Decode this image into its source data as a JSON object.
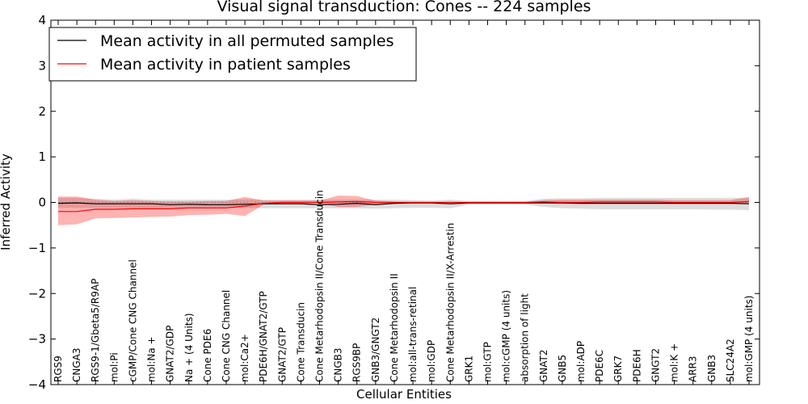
{
  "chart_data": {
    "type": "line",
    "title": "Visual signal transduction: Cones -- 224 samples",
    "xlabel": "Cellular Entities",
    "ylabel": "Inferred Activity",
    "ylim": [
      -4,
      4
    ],
    "yticks": [
      4,
      3,
      2,
      1,
      0,
      -1,
      -2,
      -3,
      -4
    ],
    "ytick_labels": [
      "4",
      "3",
      "2",
      "1",
      "0",
      "−1",
      "−2",
      "−3",
      "−4"
    ],
    "legend_position": "top-left",
    "categories": [
      "RGS9",
      "CNGA3",
      "RGS9-1/Gbeta5/R9AP",
      "mol:Pi",
      "cGMP/Cone CNG Channel",
      "mol:Na +",
      "GNAT2/GDP",
      "Na + (4 Units)",
      "Cone PDE6",
      "Cone CNG Channel",
      "mol:Ca2+",
      "PDE6H/GNAT2/GTP",
      "GNAT2/GTP",
      "Cone Transducin",
      "Cone Metarhodopsin II/Cone Transducin",
      "CNGB3",
      "RGS9BP",
      "GNB3/GNGT2",
      "Cone Metarhodopsin II",
      "mol:all-trans-retinal",
      "mol:GDP",
      "Cone Metarhodopsin II/X-Arrestin",
      "GRK1",
      "mol:GTP",
      "mol:cGMP (4 units)",
      "absorption of light",
      "GNAT2",
      "GNB5",
      "mol:ADP",
      "PDE6C",
      "GRK7",
      "PDE6H",
      "GNGT2",
      "mol:K +",
      "ARR3",
      "GNB3",
      "SLC24A2",
      "mol:GMP (4 units)"
    ],
    "series": [
      {
        "name": "Mean activity in all permuted samples",
        "color": "#000000",
        "values": [
          -0.02,
          -0.01,
          -0.03,
          -0.03,
          -0.03,
          -0.03,
          -0.05,
          -0.04,
          -0.05,
          -0.05,
          -0.04,
          -0.03,
          -0.03,
          -0.03,
          -0.05,
          -0.04,
          -0.02,
          -0.05,
          -0.02,
          -0.01,
          -0.01,
          -0.03,
          -0.01,
          -0.01,
          -0.01,
          -0.01,
          -0.01,
          -0.01,
          -0.02,
          -0.02,
          -0.02,
          -0.02,
          -0.02,
          -0.02,
          -0.02,
          -0.02,
          -0.02,
          -0.03
        ],
        "band_lower": [
          -0.12,
          -0.12,
          -0.12,
          -0.12,
          -0.12,
          -0.12,
          -0.12,
          -0.13,
          -0.13,
          -0.13,
          -0.12,
          -0.13,
          -0.13,
          -0.13,
          -0.13,
          -0.13,
          -0.13,
          -0.14,
          -0.13,
          -0.12,
          -0.12,
          -0.13,
          -0.05,
          -0.04,
          -0.04,
          -0.04,
          -0.1,
          -0.13,
          -0.14,
          -0.15,
          -0.15,
          -0.15,
          -0.15,
          -0.15,
          -0.15,
          -0.16,
          -0.16,
          -0.17
        ],
        "band_upper": [
          0.1,
          0.1,
          0.08,
          0.06,
          0.08,
          0.06,
          0.06,
          0.06,
          0.06,
          0.06,
          0.07,
          0.06,
          0.06,
          0.06,
          0.06,
          0.06,
          0.06,
          0.06,
          0.06,
          0.05,
          0.04,
          0.06,
          0.03,
          0.03,
          0.03,
          0.03,
          0.08,
          0.09,
          0.09,
          0.1,
          0.1,
          0.1,
          0.1,
          0.1,
          0.1,
          0.1,
          0.1,
          0.1
        ]
      },
      {
        "name": "Mean activity in patient samples",
        "color": "#ff0000",
        "values": [
          -0.2,
          -0.2,
          -0.15,
          -0.15,
          -0.14,
          -0.14,
          -0.14,
          -0.12,
          -0.12,
          -0.12,
          -0.08,
          -0.02,
          0.0,
          0.0,
          0.0,
          0.01,
          0.02,
          0.0,
          0.0,
          0.0,
          0.0,
          0.0,
          0.0,
          0.0,
          0.0,
          0.0,
          0.01,
          0.0,
          0.0,
          0.01,
          0.01,
          0.01,
          0.01,
          0.0,
          0.0,
          0.0,
          0.0,
          0.02
        ],
        "band_lower": [
          -0.5,
          -0.48,
          -0.35,
          -0.34,
          -0.33,
          -0.32,
          -0.31,
          -0.28,
          -0.27,
          -0.25,
          -0.3,
          -0.05,
          -0.02,
          -0.02,
          -0.02,
          -0.1,
          -0.1,
          -0.05,
          -0.02,
          -0.01,
          -0.01,
          -0.01,
          -0.01,
          -0.01,
          -0.01,
          -0.01,
          -0.02,
          -0.03,
          -0.03,
          -0.01,
          -0.01,
          -0.01,
          -0.01,
          -0.01,
          -0.02,
          -0.02,
          -0.02,
          -0.03
        ],
        "band_upper": [
          0.13,
          0.13,
          0.06,
          0.03,
          0.05,
          0.03,
          0.02,
          0.02,
          0.03,
          0.03,
          0.12,
          0.04,
          0.04,
          0.04,
          0.04,
          0.15,
          0.14,
          0.04,
          0.02,
          0.01,
          0.01,
          0.01,
          0.01,
          0.01,
          0.01,
          0.01,
          0.05,
          0.06,
          0.06,
          0.06,
          0.06,
          0.06,
          0.06,
          0.05,
          0.05,
          0.05,
          0.05,
          0.12
        ]
      }
    ],
    "reference_line": {
      "style": "dotted",
      "color": "#888888"
    }
  }
}
